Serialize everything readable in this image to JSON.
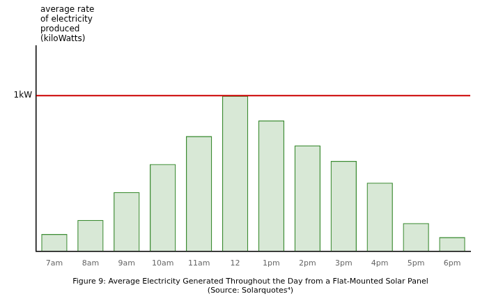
{
  "chart_data": {
    "type": "bar",
    "title": "Figure 9: Average Electricity Generated Throughout the Day from a Flat-Mounted Solar Panel",
    "subtitle": "(Source: Solarquotes⁴)",
    "ylabel": [
      "average rate",
      "of electricity",
      "produced",
      "(kiloWatts)"
    ],
    "categories": [
      "7am",
      "8am",
      "9am",
      "10am",
      "11am",
      "12",
      "1pm",
      "2pm",
      "3pm",
      "4pm",
      "5pm",
      "6pm"
    ],
    "values": [
      0.11,
      0.2,
      0.38,
      0.56,
      0.74,
      1.0,
      0.84,
      0.68,
      0.58,
      0.44,
      0.18,
      0.09
    ],
    "color": "#3a8a30",
    "ylim": [
      0,
      1.32
    ],
    "tick_labels": "x",
    "grid": false,
    "annotations": [
      {
        "type": "hline",
        "y": 1.0,
        "text": "1kW",
        "color": "#cc0000"
      }
    ]
  }
}
